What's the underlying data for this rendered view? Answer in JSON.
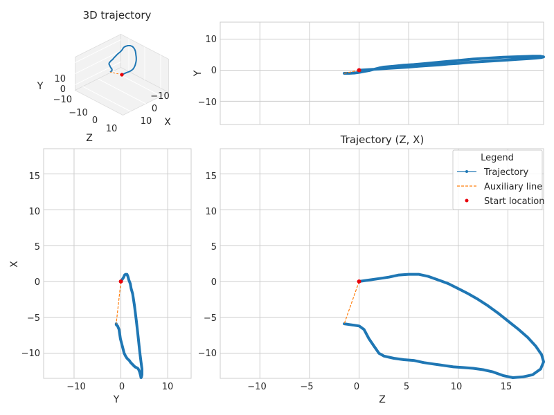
{
  "chart_data": [
    {
      "type": "line3d",
      "title": "3D trajectory",
      "xlabel": "X",
      "ylabel": "Y",
      "zlabel": "Z",
      "x_ticks": [
        "−10",
        "0",
        "10"
      ],
      "y_ticks": [
        "−10",
        "0",
        "10"
      ],
      "z_ticks": [
        "−10",
        "0",
        "10"
      ]
    },
    {
      "type": "line",
      "title": "",
      "xlabel": "",
      "ylabel": "Y",
      "xlim": [
        -14,
        18.6
      ],
      "ylim": [
        -17.5,
        15.5
      ],
      "y_ticks": [
        "10",
        "0",
        "−10"
      ],
      "grid": true
    },
    {
      "type": "line",
      "title": "",
      "xlabel": "Y",
      "ylabel": "X",
      "xlim": [
        -16.5,
        15
      ],
      "ylim": [
        -13.5,
        18.5
      ],
      "x_ticks": [
        "−10",
        "0",
        "10"
      ],
      "y_ticks": [
        "15",
        "10",
        "5",
        "0",
        "−5",
        "−10"
      ],
      "grid": true
    },
    {
      "type": "line",
      "title": "Trajectory (Z, X)",
      "xlabel": "Z",
      "ylabel": "X",
      "xlim": [
        -14,
        18.6
      ],
      "ylim": [
        -13.5,
        18.5
      ],
      "x_ticks": [
        "−10",
        "−5",
        "0",
        "5",
        "10",
        "15"
      ],
      "y_ticks": [
        "15",
        "10",
        "5",
        "0",
        "−5",
        "−10"
      ],
      "grid": true,
      "legend": {
        "title": "Legend",
        "placement": "top-right",
        "entries": [
          "Trajectory",
          "Auxiliary line",
          "Start location"
        ]
      }
    }
  ],
  "trajectory": {
    "z": [
      0,
      1,
      2,
      3,
      4,
      5,
      6,
      7,
      8,
      9,
      10,
      11,
      12,
      13,
      14,
      15,
      16,
      17,
      17.8,
      18.4,
      18.6,
      18.3,
      17.5,
      16.5,
      15.5,
      14.5,
      13.5,
      12.5,
      11.5,
      10.5,
      9.5,
      8.5,
      7.5,
      6.5,
      5.5,
      4.5,
      3.5,
      2.5,
      2.0,
      1.5,
      1.0,
      0.5,
      0.0,
      -0.5,
      -1.0,
      -1.5
    ],
    "x": [
      0,
      0.2,
      0.4,
      0.6,
      0.9,
      1.0,
      1.0,
      0.7,
      0.2,
      -0.3,
      -1.0,
      -1.7,
      -2.5,
      -3.4,
      -4.4,
      -5.5,
      -6.6,
      -7.8,
      -9.0,
      -10.2,
      -11.2,
      -12.2,
      -13.0,
      -13.3,
      -13.4,
      -13.1,
      -12.6,
      -12.3,
      -12.1,
      -12.0,
      -11.9,
      -11.7,
      -11.5,
      -11.3,
      -11.0,
      -10.9,
      -10.7,
      -10.4,
      -10.0,
      -9.0,
      -8.0,
      -6.7,
      -6.2,
      -6.1,
      -6.0,
      -5.9
    ],
    "y": [
      0,
      0.2,
      0.4,
      0.6,
      0.8,
      1.0,
      1.3,
      1.5,
      1.7,
      2.0,
      2.2,
      2.5,
      2.7,
      2.9,
      3.1,
      3.3,
      3.5,
      3.7,
      3.9,
      4.1,
      4.3,
      4.5,
      4.5,
      4.4,
      4.3,
      4.2,
      4.0,
      3.8,
      3.6,
      3.3,
      3.0,
      2.7,
      2.4,
      2.1,
      1.8,
      1.6,
      1.3,
      1.0,
      0.7,
      0.3,
      -0.1,
      -0.4,
      -0.7,
      -0.9,
      -1.0,
      -1.0
    ]
  },
  "auxiliary_line": {
    "z": [
      0,
      -1.5
    ],
    "x": [
      0,
      -5.9
    ],
    "y": [
      0,
      -1.0
    ]
  },
  "start_location": {
    "z": 0,
    "x": 0,
    "y": 0
  },
  "colors": {
    "trajectory": "#1f77b4",
    "auxiliary": "#ff7f0e",
    "start": "#e8000b",
    "grid": "#cccccc"
  }
}
